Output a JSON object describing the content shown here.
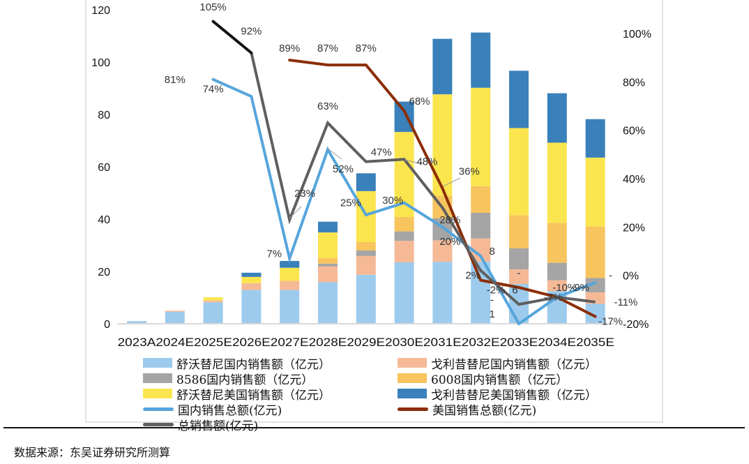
{
  "chart_data": {
    "type": "bar",
    "stacked": true,
    "categories": [
      "2023A",
      "2024E",
      "2025E",
      "2026E",
      "2027E",
      "2028E",
      "2029E",
      "2030E",
      "2031E",
      "2032E",
      "2033E",
      "2034E",
      "2035E"
    ],
    "left_axis": {
      "ylim": [
        0,
        120
      ],
      "ticks": [
        "0",
        "20",
        "40",
        "60",
        "80",
        "100",
        "120"
      ]
    },
    "right_axis": {
      "ylim": [
        -20,
        100
      ],
      "ticks": [
        "-20%",
        "0%",
        "20%",
        "40%",
        "60%",
        "80%",
        "100%"
      ]
    },
    "series": [
      {
        "name": "舒沃替尼国内销售额（亿元）",
        "color": "#9dcbed",
        "values": [
          1.0,
          4.6,
          8.2,
          12.9,
          12.9,
          15.9,
          18.7,
          23.5,
          23.7,
          23.7,
          15.2,
          12.5,
          7.6
        ]
      },
      {
        "name": "戈利昔替尼国内销售额（亿元）",
        "color": "#f5b996",
        "values": [
          0,
          0.4,
          0.7,
          2.6,
          3.5,
          6.0,
          7.2,
          8.2,
          8.2,
          8.9,
          5.6,
          4.1,
          4.4
        ]
      },
      {
        "name": "8586国内销售额（亿元）",
        "color": "#a5a5a5",
        "values": [
          0,
          0,
          0,
          0,
          0,
          1.1,
          2.1,
          3.6,
          8.4,
          9.8,
          8.0,
          6.7,
          5.5
        ]
      },
      {
        "name": "6008国内销售额（亿元）",
        "color": "#f7c45e",
        "values": [
          0,
          0,
          0,
          0,
          0,
          2.1,
          3.2,
          5.5,
          8.6,
          10.2,
          12.7,
          15.3,
          19.6
        ]
      },
      {
        "name": "舒沃替尼美国销售额（亿元）",
        "color": "#fbe54f",
        "values": [
          0,
          0,
          1.2,
          2.4,
          5.0,
          9.8,
          19.5,
          32.5,
          38.8,
          37.6,
          33.3,
          30.6,
          26.4
        ]
      },
      {
        "name": "戈利昔替尼美国销售额（亿元）",
        "color": "#3a81bb",
        "values": [
          0,
          0,
          0,
          1.6,
          2.6,
          4.1,
          6.8,
          11.6,
          21.2,
          21.1,
          21.9,
          18.9,
          14.7
        ]
      }
    ],
    "lines": [
      {
        "name": "国内销售总额(亿元)",
        "axis": "right",
        "color": "#56a5dc",
        "start_index": 2,
        "values": [
          81,
          74,
          7,
          52,
          25,
          30,
          20,
          8,
          -20,
          -9,
          -3
        ]
      },
      {
        "name": "美国销售总额(亿元)",
        "axis": "right",
        "color": "#8b2e06",
        "start_index": 4,
        "values": [
          89,
          87,
          87,
          68,
          36,
          -2,
          -5,
          -9,
          -17
        ]
      },
      {
        "name": "总销售额(亿元)",
        "axis": "right",
        "color": "#5f5f5f",
        "first_segment_color": "#111111",
        "start_index": 2,
        "values": [
          105,
          92,
          23,
          63,
          47,
          48,
          28,
          2,
          -12,
          -9,
          -11
        ]
      }
    ],
    "data_labels": [
      {
        "text": "105%",
        "cat": 2,
        "v": 111
      },
      {
        "text": "92%",
        "cat": 3,
        "v": 101
      },
      {
        "text": "81%",
        "cat": 1,
        "v": 81
      },
      {
        "text": "74%",
        "cat": 2,
        "v": 77
      },
      {
        "text": "89%",
        "cat": 4,
        "v": 94
      },
      {
        "text": "87%",
        "cat": 5,
        "v": 94
      },
      {
        "text": "87%",
        "cat": 6,
        "v": 94
      },
      {
        "text": "63%",
        "cat": 5,
        "v": 70
      },
      {
        "text": "68%",
        "cat": 7.4,
        "v": 72
      },
      {
        "text": "47%",
        "cat": 6.4,
        "v": 51
      },
      {
        "text": "48%",
        "cat": 7.6,
        "v": 47
      },
      {
        "text": "52%",
        "cat": 5.4,
        "v": 44
      },
      {
        "text": "36%",
        "cat": 8.7,
        "v": 43
      },
      {
        "text": "23%",
        "cat": 4.4,
        "v": 34
      },
      {
        "text": "30%",
        "cat": 6.7,
        "v": 31
      },
      {
        "text": "25%",
        "cat": 5.6,
        "v": 30
      },
      {
        "text": "28%",
        "cat": 8.2,
        "v": 23
      },
      {
        "text": "20%",
        "cat": 8.2,
        "v": 14
      },
      {
        "text": "7%",
        "cat": 3.6,
        "v": 9
      },
      {
        "text": "8",
        "cat": 9.3,
        "v": 10
      },
      {
        "text": "2%",
        "cat": 8.8,
        "v": 0
      },
      {
        "text": "-2%",
        "cat": 9.4,
        "v": -6
      },
      {
        "text": "-",
        "cat": 10,
        "v": 1
      },
      {
        "text": "6",
        "cat": 9.9,
        "v": -6
      },
      {
        "text": "-",
        "cat": 9.3,
        "v": -10
      },
      {
        "text": "1",
        "cat": 9.3,
        "v": -16
      },
      {
        "text": "-10%",
        "cat": 11.2,
        "v": -5
      },
      {
        "text": "-9%",
        "cat": 11.6,
        "v": -5
      },
      {
        "text": "-7%",
        "cat": 10.9,
        "v": -9
      },
      {
        "text": "-",
        "cat": 12.4,
        "v": 0
      },
      {
        "text": "-11%",
        "cat": 12.8,
        "v": -11
      },
      {
        "text": "-17%",
        "cat": 12.4,
        "v": -19
      }
    ]
  },
  "legend": {
    "items": [
      {
        "label": "舒沃替尼国内销售额（亿元）",
        "kind": "box",
        "color": "#9dcbed"
      },
      {
        "label": "戈利昔替尼国内销售额（亿元）",
        "kind": "box",
        "color": "#f5b996"
      },
      {
        "label": "8586国内销售额（亿元）",
        "kind": "box",
        "color": "#a5a5a5"
      },
      {
        "label": "6008国内销售额（亿元）",
        "kind": "box",
        "color": "#f7c45e"
      },
      {
        "label": "舒沃替尼美国销售额（亿元）",
        "kind": "box",
        "color": "#fbe54f"
      },
      {
        "label": "戈利昔替尼美国销售额（亿元）",
        "kind": "box",
        "color": "#3a81bb"
      },
      {
        "label": "国内销售总额(亿元)",
        "kind": "line",
        "color": "#56a5dc"
      },
      {
        "label": "美国销售总额(亿元)",
        "kind": "line",
        "color": "#8b2e06"
      },
      {
        "label": "总销售额(亿元)",
        "kind": "line",
        "color": "#5f5f5f"
      }
    ]
  },
  "source": "数据来源：东吴证券研究所测算"
}
